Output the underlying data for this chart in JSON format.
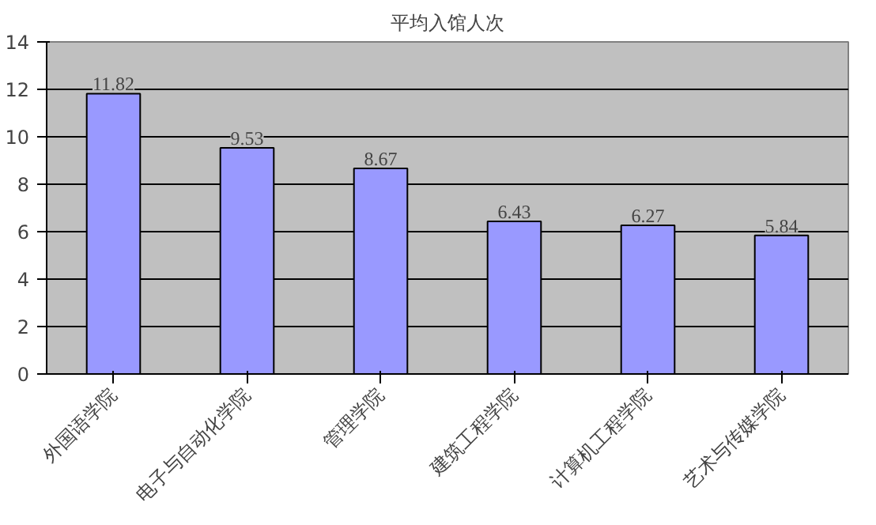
{
  "chart_data": {
    "type": "bar",
    "title": "平均入馆人次",
    "categories": [
      "外国语学院",
      "电子与自动化学院",
      "管理学院",
      "建筑工程学院",
      "计算机工程学院",
      "艺术与传媒学院"
    ],
    "values": [
      11.82,
      9.53,
      8.67,
      6.43,
      6.27,
      5.84
    ],
    "color": "#9999ff",
    "ylim": [
      0,
      14
    ],
    "yticks": [
      0,
      2,
      4,
      6,
      8,
      10,
      12,
      14
    ],
    "grid": "y",
    "data_labels": true
  }
}
